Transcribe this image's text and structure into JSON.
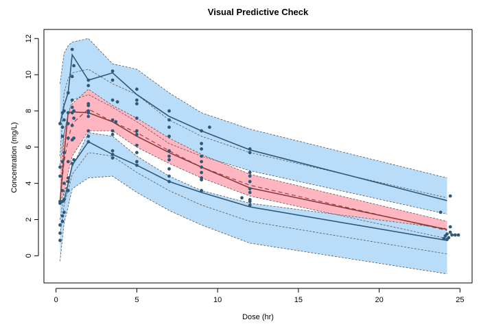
{
  "chart_data": {
    "type": "line",
    "title": "Visual Predictive Check",
    "xlabel": "Dose (hr)",
    "ylabel": "Concentration (mg/L)",
    "xlim": [
      -0.75,
      25.75
    ],
    "ylim": [
      -1.5,
      12.5
    ],
    "x_ticks": [
      0,
      5,
      10,
      15,
      20,
      25
    ],
    "y_ticks": [
      0,
      2,
      4,
      6,
      8,
      10,
      12
    ],
    "grid": false,
    "legend": "none",
    "colors": {
      "outer_band": "#b9dcf8",
      "median_band": "#ffb6c1",
      "line": "#2f5878",
      "median_line": "#8b3a3a",
      "dashed": "#555555",
      "points": "#2f5878"
    },
    "time": [
      0.25,
      0.5,
      0.75,
      1,
      2,
      3.5,
      5,
      7,
      9,
      12,
      24.2
    ],
    "bands": [
      {
        "name": "upper",
        "upper": [
          9.5,
          11.2,
          11.6,
          11.8,
          12.0,
          10.6,
          10.3,
          9.0,
          7.9,
          7.0,
          4.3
        ],
        "lower": [
          3.0,
          6.7,
          7.8,
          8.6,
          8.9,
          8.2,
          7.4,
          6.2,
          5.5,
          4.7,
          2.3
        ],
        "median": [
          5.5,
          9.0,
          9.8,
          10.1,
          10.3,
          9.5,
          8.9,
          7.5,
          6.6,
          5.7,
          3.2
        ]
      },
      {
        "name": "median",
        "upper": [
          5.0,
          6.8,
          7.8,
          8.4,
          9.2,
          8.3,
          7.6,
          6.5,
          5.6,
          4.5,
          1.9
        ],
        "lower": [
          2.0,
          3.4,
          4.6,
          5.5,
          6.9,
          6.9,
          6.0,
          5.1,
          4.3,
          3.3,
          0.95
        ],
        "median": [
          3.0,
          5.2,
          6.4,
          7.3,
          8.1,
          7.4,
          6.8,
          5.8,
          4.9,
          3.9,
          1.4
        ]
      },
      {
        "name": "lower",
        "upper": [
          3.0,
          3.5,
          4.0,
          4.9,
          6.8,
          6.6,
          5.5,
          4.4,
          3.6,
          2.9,
          1.5
        ],
        "lower": [
          -0.3,
          1.8,
          2.7,
          3.7,
          4.3,
          4.4,
          3.5,
          2.5,
          1.7,
          0.7,
          -1.0
        ],
        "median": [
          1.2,
          2.8,
          3.6,
          4.5,
          5.7,
          5.5,
          4.6,
          3.6,
          2.8,
          1.9,
          0.1
        ]
      }
    ],
    "observed_percentiles": [
      {
        "name": "95th percentile",
        "values": [
          7.3,
          8.3,
          9.0,
          11.1,
          9.7,
          10.1,
          8.9,
          7.7,
          6.9,
          5.85,
          3.05
        ]
      },
      {
        "name": "50th percentile",
        "values": [
          3.0,
          5.6,
          7.9,
          7.95,
          7.9,
          7.4,
          6.6,
          5.7,
          4.9,
          3.75,
          1.45
        ]
      },
      {
        "name": "5th percentile",
        "values": [
          2.9,
          3.0,
          4.0,
          5.0,
          6.3,
          5.6,
          5.0,
          4.1,
          3.5,
          2.7,
          0.85
        ]
      }
    ],
    "observations": [
      [
        0.25,
        0.85
      ],
      [
        0.25,
        1.25
      ],
      [
        0.25,
        1.7
      ],
      [
        0.25,
        2.9
      ],
      [
        0.25,
        3.0
      ],
      [
        0.25,
        4.4
      ],
      [
        0.25,
        4.9
      ],
      [
        0.25,
        7.3
      ],
      [
        0.4,
        1.9
      ],
      [
        0.4,
        2.2
      ],
      [
        0.4,
        3.0
      ],
      [
        0.4,
        3.6
      ],
      [
        0.4,
        5.2
      ],
      [
        0.4,
        6.6
      ],
      [
        0.4,
        7.1
      ],
      [
        0.4,
        7.9
      ],
      [
        0.5,
        2.4
      ],
      [
        0.5,
        3.1
      ],
      [
        0.5,
        4.0
      ],
      [
        0.5,
        5.7
      ],
      [
        0.5,
        7.5
      ],
      [
        0.5,
        8.0
      ],
      [
        0.75,
        3.6
      ],
      [
        0.75,
        4.1
      ],
      [
        0.75,
        4.3
      ],
      [
        0.75,
        5.2
      ],
      [
        0.75,
        6.5
      ],
      [
        0.75,
        7.3
      ],
      [
        0.75,
        7.9
      ],
      [
        0.75,
        9.0
      ],
      [
        1.0,
        5.1
      ],
      [
        1.0,
        6.4
      ],
      [
        1.0,
        7.2
      ],
      [
        1.0,
        7.9
      ],
      [
        1.0,
        8.2
      ],
      [
        1.0,
        8.6
      ],
      [
        1.0,
        11.4
      ],
      [
        1.0,
        9.9
      ],
      [
        1.1,
        5.3
      ],
      [
        1.1,
        6.5
      ],
      [
        1.1,
        7.6
      ],
      [
        1.1,
        8.0
      ],
      [
        1.1,
        10.5
      ],
      [
        2.0,
        6.3
      ],
      [
        2.0,
        6.6
      ],
      [
        2.0,
        6.9
      ],
      [
        2.0,
        7.7
      ],
      [
        2.0,
        7.9
      ],
      [
        2.0,
        8.0
      ],
      [
        2.0,
        8.3
      ],
      [
        2.0,
        8.4
      ],
      [
        2.0,
        9.4
      ],
      [
        2.0,
        9.7
      ],
      [
        3.5,
        5.4
      ],
      [
        3.5,
        5.6
      ],
      [
        3.5,
        5.8
      ],
      [
        3.5,
        6.7
      ],
      [
        3.5,
        6.9
      ],
      [
        3.5,
        7.5
      ],
      [
        3.5,
        8.6
      ],
      [
        3.5,
        9.7
      ],
      [
        3.5,
        10.2
      ],
      [
        3.7,
        7.4
      ],
      [
        3.8,
        8.5
      ],
      [
        5.0,
        5.0
      ],
      [
        5.0,
        5.2
      ],
      [
        5.0,
        5.7
      ],
      [
        5.0,
        6.1
      ],
      [
        5.0,
        6.7
      ],
      [
        5.0,
        6.9
      ],
      [
        5.0,
        7.6
      ],
      [
        5.0,
        8.4
      ],
      [
        5.0,
        8.6
      ],
      [
        5.0,
        9.2
      ],
      [
        7.0,
        4.1
      ],
      [
        7.0,
        4.4
      ],
      [
        7.0,
        4.8
      ],
      [
        7.0,
        5.3
      ],
      [
        7.0,
        5.5
      ],
      [
        7.0,
        5.8
      ],
      [
        7.0,
        6.6
      ],
      [
        7.0,
        7.1
      ],
      [
        7.0,
        7.5
      ],
      [
        7.0,
        8.0
      ],
      [
        9.0,
        3.6
      ],
      [
        9.0,
        4.2
      ],
      [
        9.0,
        4.3
      ],
      [
        9.0,
        4.6
      ],
      [
        9.0,
        4.9
      ],
      [
        9.0,
        5.2
      ],
      [
        9.0,
        5.5
      ],
      [
        9.0,
        5.9
      ],
      [
        9.0,
        6.2
      ],
      [
        9.0,
        6.9
      ],
      [
        9.5,
        7.1
      ],
      [
        12.0,
        2.8
      ],
      [
        12.0,
        3.0
      ],
      [
        12.0,
        3.1
      ],
      [
        12.0,
        3.5
      ],
      [
        12.0,
        3.7
      ],
      [
        12.0,
        4.1
      ],
      [
        12.0,
        4.4
      ],
      [
        12.0,
        4.6
      ],
      [
        12.0,
        5.7
      ],
      [
        12.0,
        5.9
      ],
      [
        11.5,
        3.2
      ],
      [
        23.8,
        2.4
      ],
      [
        24.0,
        0.95
      ],
      [
        24.1,
        1.1
      ],
      [
        24.2,
        0.9
      ],
      [
        24.2,
        1.2
      ],
      [
        24.3,
        1.0
      ],
      [
        24.4,
        1.3
      ],
      [
        24.5,
        1.15
      ],
      [
        24.7,
        1.15
      ],
      [
        24.9,
        1.15
      ],
      [
        24.4,
        3.3
      ],
      [
        24.4,
        1.6
      ]
    ]
  }
}
